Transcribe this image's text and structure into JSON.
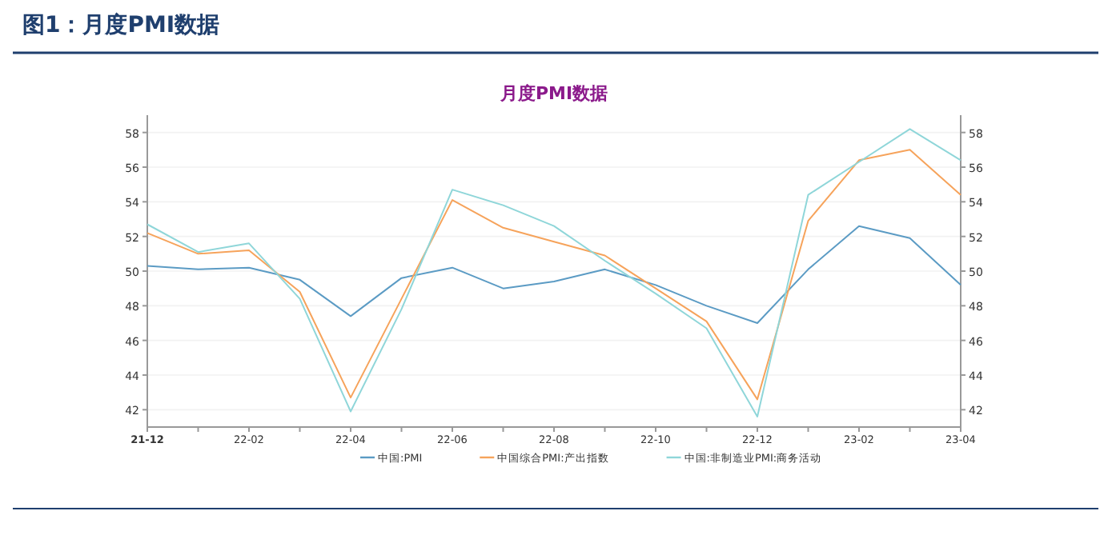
{
  "chart_data": {
    "type": "line",
    "title": "图1：月度PMI数据",
    "subtitle": "月度PMI数据",
    "categories": [
      "21-12",
      null,
      "22-02",
      null,
      "22-04",
      null,
      "22-06",
      null,
      "22-08",
      null,
      "22-10",
      null,
      "22-12",
      null,
      "23-02",
      null,
      "23-04"
    ],
    "series": [
      {
        "name": "中国:PMI",
        "color": "#5b9bc4",
        "values": [
          50.3,
          50.1,
          50.2,
          49.5,
          47.4,
          49.6,
          50.2,
          49.0,
          49.4,
          50.1,
          49.2,
          48.0,
          47.0,
          50.1,
          52.6,
          51.9,
          49.2
        ]
      },
      {
        "name": "中国综合PMI:产出指数",
        "color": "#f6a35b",
        "values": [
          52.2,
          51.0,
          51.2,
          48.8,
          42.7,
          48.4,
          54.1,
          52.5,
          51.7,
          50.9,
          49.0,
          47.1,
          42.6,
          52.9,
          56.4,
          57.0,
          54.4
        ]
      },
      {
        "name": "中国:非制造业PMI:商务活动",
        "color": "#8fd6d9",
        "values": [
          52.7,
          51.1,
          51.6,
          48.4,
          41.9,
          47.8,
          54.7,
          53.8,
          52.6,
          50.6,
          48.7,
          46.7,
          41.6,
          54.4,
          56.3,
          58.2,
          56.4
        ]
      }
    ],
    "ylim": [
      41,
      59
    ],
    "yticks": [
      42,
      44,
      46,
      48,
      50,
      52,
      54,
      56,
      58
    ],
    "y2lim": [
      41,
      59
    ],
    "y2ticks": [
      42,
      44,
      46,
      48,
      50,
      52,
      54,
      56,
      58
    ],
    "grid": "y",
    "legend": "bottom",
    "marker": "none",
    "line_style": "solid"
  }
}
